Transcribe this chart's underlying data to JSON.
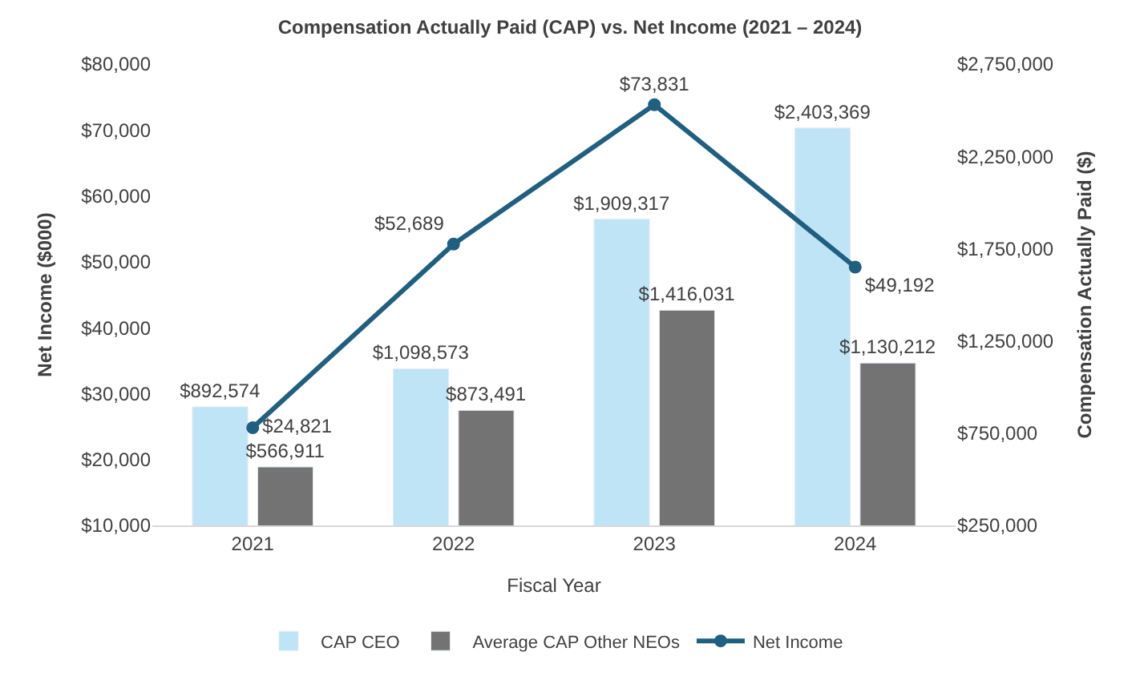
{
  "chart_data": {
    "type": "bar",
    "title": "Compensation Actually Paid (CAP) vs. Net Income (2021 – 2024)",
    "xlabel": "Fiscal Year",
    "ylabel": "Net Income ($000)",
    "y2label": "Compensation Actually Paid ($)",
    "categories": [
      "2021",
      "2022",
      "2023",
      "2024"
    ],
    "series": [
      {
        "name": "CAP CEO",
        "axis": "y2",
        "color": "#bfe4f6",
        "values": [
          892574,
          1098573,
          1909317,
          2403369
        ],
        "value_labels": [
          "$892,574",
          "$1,098,573",
          "$1,909,317",
          "$2,403,369"
        ]
      },
      {
        "name": "Average CAP Other NEOs",
        "axis": "y2",
        "color": "#737373",
        "values": [
          566911,
          873491,
          1416031,
          1130212
        ],
        "value_labels": [
          "$566,911",
          "$873,491",
          "$1,416,031",
          "$1,130,212"
        ]
      },
      {
        "name": "Net Income",
        "type": "line",
        "axis": "y",
        "color": "#1f5f80",
        "marker": "circle",
        "values": [
          24821,
          52689,
          73831,
          49192
        ],
        "value_labels": [
          "$24,821",
          "$52,689",
          "$73,831",
          "$49,192"
        ]
      }
    ],
    "ylim": [
      10000,
      80000
    ],
    "yticks": [
      {
        "value": 10000,
        "label": "$10,000"
      },
      {
        "value": 20000,
        "label": "$20,000"
      },
      {
        "value": 30000,
        "label": "$30,000"
      },
      {
        "value": 40000,
        "label": "$40,000"
      },
      {
        "value": 50000,
        "label": "$50,000"
      },
      {
        "value": 60000,
        "label": "$60,000"
      },
      {
        "value": 70000,
        "label": "$70,000"
      },
      {
        "value": 80000,
        "label": "$80,000"
      }
    ],
    "y2lim": [
      250000,
      2750000
    ],
    "y2ticks": [
      {
        "value": 250000,
        "label": "$250,000"
      },
      {
        "value": 750000,
        "label": "$750,000"
      },
      {
        "value": 1250000,
        "label": "$1,250,000"
      },
      {
        "value": 1750000,
        "label": "$1,750,000"
      },
      {
        "value": 2250000,
        "label": "$2,250,000"
      },
      {
        "value": 2750000,
        "label": "$2,750,000"
      }
    ],
    "legend": "bottom"
  }
}
